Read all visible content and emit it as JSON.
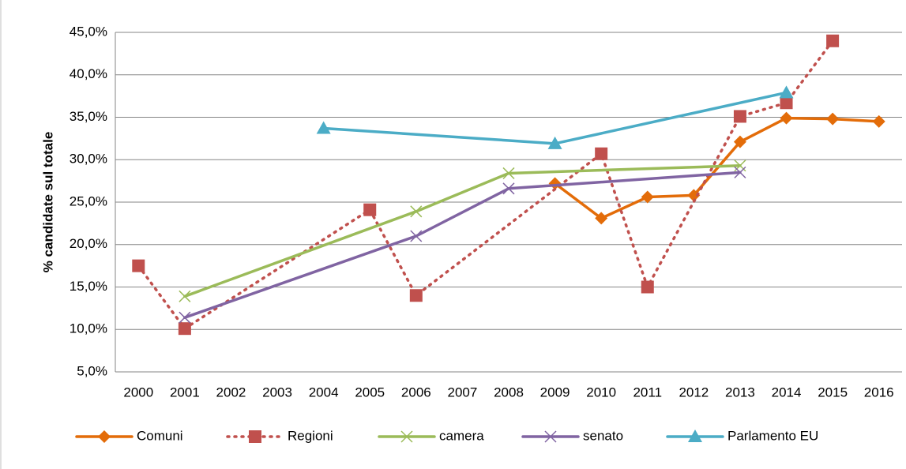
{
  "chart_data": {
    "type": "line",
    "y_label": "% candidate sul totale",
    "xlim": [
      1999.5,
      2016.5
    ],
    "xticks": [
      2000,
      2001,
      2002,
      2003,
      2004,
      2005,
      2006,
      2007,
      2008,
      2009,
      2010,
      2011,
      2012,
      2013,
      2014,
      2015,
      2016
    ],
    "ylim": [
      5,
      45
    ],
    "yticks": [
      {
        "value": 5,
        "label": "5,0%"
      },
      {
        "value": 10,
        "label": "10,0%"
      },
      {
        "value": 15,
        "label": "15,0%"
      },
      {
        "value": 20,
        "label": "20,0%"
      },
      {
        "value": 25,
        "label": "25,0%"
      },
      {
        "value": 30,
        "label": "30,0%"
      },
      {
        "value": 35,
        "label": "35,0%"
      },
      {
        "value": 40,
        "label": "40,0%"
      },
      {
        "value": 45,
        "label": "45,0%"
      }
    ],
    "grid": true,
    "legend": "bottom",
    "series": [
      {
        "name": "Comuni",
        "color": "#e36c09",
        "marker": "diamond",
        "line_style": "solid",
        "x": [
          2009,
          2010,
          2011,
          2012,
          2013,
          2014,
          2015,
          2016
        ],
        "values": [
          27.2,
          23.1,
          25.6,
          25.8,
          32.1,
          34.9,
          34.8,
          34.5
        ]
      },
      {
        "name": "Regioni",
        "color": "#c0504d",
        "marker": "square",
        "line_style": "dotted",
        "x": [
          2000,
          2001,
          2005,
          2006,
          2010,
          2011,
          2013,
          2014,
          2015
        ],
        "values": [
          17.5,
          10.1,
          24.1,
          14.0,
          30.7,
          15.0,
          35.1,
          36.7,
          44.0
        ]
      },
      {
        "name": "camera",
        "color": "#9bbb59",
        "marker": "x",
        "line_style": "solid",
        "x": [
          2001,
          2006,
          2008,
          2013
        ],
        "values": [
          13.9,
          23.9,
          28.4,
          29.3
        ]
      },
      {
        "name": "senato",
        "color": "#8064a2",
        "marker": "x",
        "line_style": "solid",
        "x": [
          2001,
          2006,
          2008,
          2013
        ],
        "values": [
          11.4,
          21.0,
          26.6,
          28.5
        ]
      },
      {
        "name": "Parlamento EU",
        "color": "#4bacc6",
        "marker": "triangle",
        "line_style": "solid",
        "x": [
          2004,
          2009,
          2014
        ],
        "values": [
          33.7,
          31.9,
          37.9
        ]
      }
    ]
  }
}
